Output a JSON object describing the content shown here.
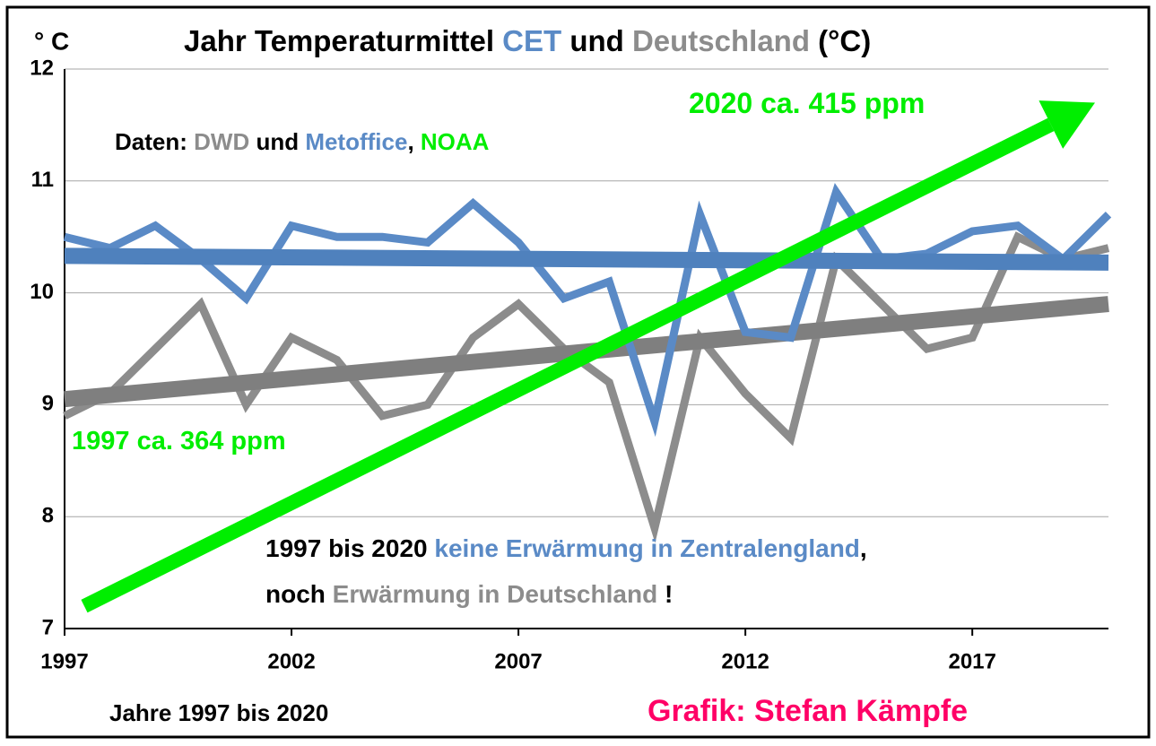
{
  "chart_data": {
    "type": "line",
    "title_parts": [
      {
        "text": "Jahr Temperaturmittel ",
        "color": "#000000"
      },
      {
        "text": "CET",
        "color": "#5a8ac6"
      },
      {
        "text": " und ",
        "color": "#000000"
      },
      {
        "text": "Deutschland",
        "color": "#8c8c8c"
      },
      {
        "text": " (°C)",
        "color": "#000000"
      }
    ],
    "ylabel": "° C",
    "xlabel": "Jahre 1997 bis 2020",
    "credit": {
      "text": "Grafik: Stefan Kämpfe",
      "color": "#ff0066"
    },
    "x": [
      1997,
      1998,
      1999,
      2000,
      2001,
      2002,
      2003,
      2004,
      2005,
      2006,
      2007,
      2008,
      2009,
      2010,
      2011,
      2012,
      2013,
      2014,
      2015,
      2016,
      2017,
      2018,
      2019,
      2020
    ],
    "series": [
      {
        "color": "#8c8c8c",
        "values": [
          8.9,
          9.1,
          9.5,
          9.9,
          9.0,
          9.6,
          9.4,
          8.9,
          9.0,
          9.6,
          9.9,
          9.5,
          9.2,
          7.9,
          9.6,
          9.1,
          8.7,
          10.3,
          9.9,
          9.5,
          9.6,
          10.5,
          10.3,
          10.4
        ]
      },
      {
        "color": "#5a8ac6",
        "values": [
          10.5,
          10.4,
          10.6,
          10.3,
          9.95,
          10.6,
          10.5,
          10.5,
          10.45,
          10.8,
          10.45,
          9.95,
          10.1,
          8.85,
          10.7,
          9.65,
          9.6,
          10.9,
          10.3,
          10.35,
          10.55,
          10.6,
          10.3,
          10.7
        ]
      }
    ],
    "trends": [
      {
        "color": "#7f7f7f",
        "x": [
          1997,
          2020
        ],
        "values": [
          9.05,
          9.9
        ]
      },
      {
        "color": "#4f81bd",
        "x": [
          1997,
          2020
        ],
        "values": [
          10.33,
          10.27
        ]
      }
    ],
    "arrow": {
      "color": "#00ee00",
      "x": [
        1997,
        2020
      ],
      "values": [
        7.2,
        11.7
      ]
    },
    "annotations": [
      {
        "parts": [
          {
            "text": "Daten: ",
            "color": "#000000"
          },
          {
            "text": "DWD",
            "color": "#8c8c8c"
          },
          {
            "text": " und ",
            "color": "#000000"
          },
          {
            "text": "Metoffice",
            "color": "#5a8ac6"
          },
          {
            "text": ", ",
            "color": "#000000"
          },
          {
            "text": "NOAA",
            "color": "#00ee00"
          }
        ]
      },
      {
        "parts": [
          {
            "text": "1997 ca. 364 ppm",
            "color": "#00ee00"
          }
        ]
      },
      {
        "parts": [
          {
            "text": "2020 ca. 415 ppm",
            "color": "#00ee00"
          }
        ]
      },
      {
        "parts": [
          {
            "text": "1997 bis 2020 ",
            "color": "#000000"
          },
          {
            "text": "keine Erwärmung in Zentralengland",
            "color": "#5a8ac6"
          },
          {
            "text": ",",
            "color": "#000000"
          }
        ]
      },
      {
        "parts": [
          {
            "text": "noch ",
            "color": "#000000"
          },
          {
            "text": "Erwärmung in Deutschland",
            "color": "#8c8c8c"
          },
          {
            "text": " !",
            "color": "#000000"
          }
        ]
      }
    ],
    "xlim": [
      1997,
      2020
    ],
    "xticks": [
      1997,
      2002,
      2007,
      2012,
      2017
    ],
    "ylim": [
      7,
      12
    ],
    "yticks": [
      7,
      8,
      9,
      10,
      11,
      12
    ],
    "grid": true
  }
}
